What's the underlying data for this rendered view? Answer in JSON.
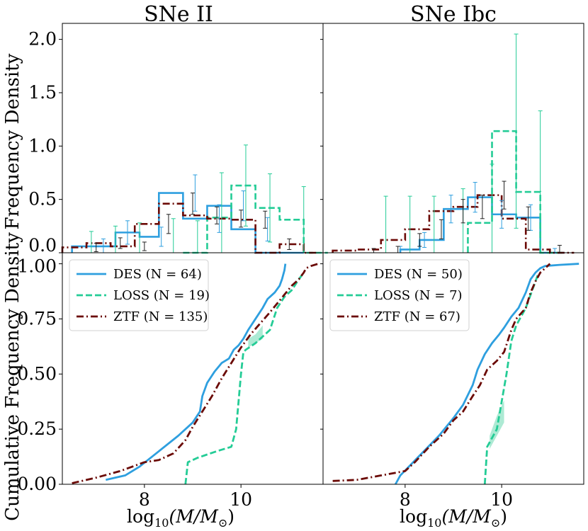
{
  "colors": {
    "des": "#2e9fdf",
    "loss": "#24cc96",
    "ztf": "#6b0a06",
    "loss_band": "#9fe6cc"
  },
  "figure": {
    "ylabel_top": "Frequency Density",
    "ylabel_bottom": "Cumulative Frequency Density",
    "xlabel_main": "log",
    "xlabel_sub": "10",
    "xlabel_rest": "(M/M",
    "xlabel_sun": "⊙",
    "xlabel_close": ")"
  },
  "chart_data": [
    {
      "panel": "hist-sne-ii",
      "type": "bar",
      "title": "SNe II",
      "xlim": [
        6.3,
        11.7
      ],
      "ylim": [
        0,
        2.15
      ],
      "yticks": [
        "0.0",
        "0.5",
        "1.0",
        "1.5",
        "2.0"
      ],
      "ytick_values": [
        0,
        0.5,
        1.0,
        1.5,
        2.0
      ],
      "series": [
        {
          "name": "DES",
          "style": "solid",
          "edges": [
            6.5,
            6.9,
            7.4,
            7.9,
            8.3,
            8.8,
            9.3,
            9.8,
            10.3,
            10.8,
            11.3
          ],
          "values": [
            0.06,
            0.06,
            0.19,
            0.15,
            0.56,
            0.32,
            0.44,
            0.22,
            0.0,
            0.0
          ],
          "errors": [
            [
              7.15,
              0.06,
              0.07
            ],
            [
              7.65,
              0.19,
              0.11
            ],
            [
              8.35,
              0.15,
              0.09
            ],
            [
              9.05,
              0.56,
              0.17
            ],
            [
              9.55,
              0.32,
              0.13
            ],
            [
              10.05,
              0.44,
              0.14
            ],
            [
              10.55,
              0.22,
              0.11
            ]
          ]
        },
        {
          "name": "LOSS",
          "style": "dashed",
          "edges": [
            8.8,
            9.3,
            9.8,
            10.3,
            10.8,
            11.3,
            11.8
          ],
          "values": [
            0.0,
            0.33,
            0.63,
            0.42,
            0.31,
            0.0
          ],
          "errors": [
            [
              6.9,
              0.0,
              0.2
            ],
            [
              7.4,
              0.0,
              0.25
            ],
            [
              7.9,
              0.0,
              0.28
            ],
            [
              8.6,
              0.0,
              0.32
            ],
            [
              9.1,
              0.0,
              0.3
            ],
            [
              9.6,
              0.33,
              0.42
            ],
            [
              10.1,
              0.63,
              0.38
            ],
            [
              10.6,
              0.42,
              0.32
            ],
            [
              11.3,
              0.31,
              0.31
            ]
          ]
        },
        {
          "name": "ZTF",
          "style": "dashdot",
          "edges": [
            6.3,
            6.8,
            7.3,
            7.8,
            8.3,
            8.8,
            9.3,
            9.8,
            10.3,
            10.8,
            11.3,
            11.6
          ],
          "values": [
            0.05,
            0.09,
            0.06,
            0.27,
            0.46,
            0.35,
            0.32,
            0.31,
            0.0,
            0.08,
            0.0
          ],
          "errors": [
            [
              7.0,
              0.05,
              0.04
            ],
            [
              7.5,
              0.09,
              0.05
            ],
            [
              8.0,
              0.06,
              0.04
            ],
            [
              8.5,
              0.27,
              0.09
            ],
            [
              9.0,
              0.46,
              0.1
            ],
            [
              9.5,
              0.35,
              0.08
            ],
            [
              10.0,
              0.32,
              0.08
            ],
            [
              10.5,
              0.31,
              0.08
            ],
            [
              11.0,
              0.08,
              0.05
            ]
          ]
        }
      ]
    },
    {
      "panel": "hist-sne-ibc",
      "type": "bar",
      "title": "SNe Ibc",
      "xlim": [
        6.3,
        11.7
      ],
      "ylim": [
        0,
        2.15
      ],
      "series": [
        {
          "name": "DES",
          "style": "solid",
          "edges": [
            7.9,
            8.3,
            8.8,
            9.3,
            9.8,
            10.3,
            10.8,
            11.3
          ],
          "values": [
            0.03,
            0.12,
            0.41,
            0.52,
            0.36,
            0.33,
            0.0
          ],
          "errors": [
            [
              7.9,
              0.03,
              0.03
            ],
            [
              8.4,
              0.12,
              0.07
            ],
            [
              8.95,
              0.41,
              0.13
            ],
            [
              9.45,
              0.52,
              0.14
            ],
            [
              10.0,
              0.36,
              0.13
            ],
            [
              10.6,
              0.33,
              0.12
            ],
            [
              11.1,
              0.0,
              0.04
            ]
          ]
        },
        {
          "name": "LOSS",
          "style": "dashed",
          "edges": [
            9.3,
            9.8,
            10.3,
            10.8,
            11.3
          ],
          "values": [
            0.28,
            1.14,
            0.57,
            0.0
          ],
          "errors": [
            [
              7.6,
              0.0,
              0.53
            ],
            [
              8.1,
              0.0,
              0.53
            ],
            [
              8.6,
              0.0,
              0.53
            ],
            [
              9.2,
              0.0,
              0.6
            ],
            [
              9.8,
              0.28,
              0.55
            ],
            [
              10.3,
              1.14,
              0.91
            ],
            [
              10.8,
              0.57,
              0.76
            ]
          ]
        },
        {
          "name": "ZTF",
          "style": "dashdot",
          "edges": [
            6.5,
            7.0,
            7.5,
            8.0,
            8.5,
            9.0,
            9.5,
            10.0,
            10.5,
            11.0,
            11.5
          ],
          "values": [
            0.02,
            0.03,
            0.12,
            0.22,
            0.39,
            0.43,
            0.54,
            0.32,
            0.03,
            0.0
          ],
          "errors": [
            [
              7.35,
              0.02,
              0.02
            ],
            [
              7.85,
              0.03,
              0.03
            ],
            [
              8.3,
              0.12,
              0.06
            ],
            [
              8.75,
              0.22,
              0.09
            ],
            [
              9.2,
              0.39,
              0.11
            ],
            [
              9.6,
              0.43,
              0.11
            ],
            [
              10.05,
              0.54,
              0.13
            ],
            [
              10.55,
              0.32,
              0.11
            ],
            [
              11.2,
              0.03,
              0.04
            ]
          ]
        }
      ]
    },
    {
      "panel": "cdf-sne-ii",
      "type": "line",
      "xlim": [
        6.3,
        11.7
      ],
      "ylim": [
        0,
        1.05
      ],
      "xticks": [
        "8",
        "10"
      ],
      "xtick_values": [
        8,
        10
      ],
      "yticks": [
        "0.00",
        "0.25",
        "0.50",
        "0.75",
        "1.00"
      ],
      "ytick_values": [
        0,
        0.25,
        0.5,
        0.75,
        1.0
      ],
      "legend": [
        {
          "label": "DES (N = 64)"
        },
        {
          "label": "LOSS (N = 19)"
        },
        {
          "label": "ZTF (N = 135)"
        }
      ],
      "series": [
        {
          "name": "DES",
          "style": "solid",
          "x": [
            7.2,
            7.6,
            7.9,
            8.3,
            8.7,
            9.0,
            9.15,
            9.2,
            9.3,
            9.45,
            9.6,
            9.75,
            9.85,
            9.95,
            10.05,
            10.15,
            10.3,
            10.45,
            10.55,
            10.7,
            10.8,
            10.85,
            10.9,
            10.92
          ],
          "y": [
            0.02,
            0.04,
            0.08,
            0.15,
            0.22,
            0.28,
            0.33,
            0.4,
            0.46,
            0.51,
            0.55,
            0.57,
            0.61,
            0.63,
            0.66,
            0.7,
            0.75,
            0.8,
            0.84,
            0.87,
            0.9,
            0.93,
            0.97,
            1.0
          ]
        },
        {
          "name": "LOSS",
          "style": "dashed",
          "x": [
            8.85,
            8.9,
            9.1,
            9.5,
            9.8,
            9.9,
            10.0,
            10.05,
            10.1,
            10.3,
            10.6,
            10.75,
            10.9,
            11.05,
            11.2,
            11.3
          ],
          "y": [
            0.0,
            0.1,
            0.12,
            0.15,
            0.17,
            0.25,
            0.5,
            0.6,
            0.61,
            0.64,
            0.7,
            0.8,
            0.85,
            0.88,
            0.93,
            0.96
          ],
          "band": [
            [
              10.15,
              0.62,
              0.66
            ],
            [
              10.3,
              0.64,
              0.68
            ],
            [
              10.45,
              0.66,
              0.72
            ]
          ]
        },
        {
          "name": "ZTF",
          "style": "dashdot",
          "x": [
            6.5,
            7.0,
            7.5,
            8.0,
            8.3,
            8.6,
            8.85,
            9.0,
            9.2,
            9.4,
            9.6,
            9.8,
            10.0,
            10.2,
            10.4,
            10.6,
            10.75,
            10.9,
            11.05,
            11.2,
            11.3,
            11.35,
            11.45,
            11.6
          ],
          "y": [
            0.005,
            0.03,
            0.06,
            0.1,
            0.11,
            0.14,
            0.2,
            0.26,
            0.33,
            0.4,
            0.48,
            0.55,
            0.62,
            0.68,
            0.73,
            0.78,
            0.82,
            0.86,
            0.9,
            0.93,
            0.96,
            0.98,
            0.99,
            1.0
          ]
        }
      ]
    },
    {
      "panel": "cdf-sne-ibc",
      "type": "line",
      "xlim": [
        6.3,
        11.7
      ],
      "ylim": [
        0,
        1.05
      ],
      "xticks": [
        "8",
        "10"
      ],
      "xtick_values": [
        8,
        10
      ],
      "legend": [
        {
          "label": "DES (N = 50)"
        },
        {
          "label": "LOSS (N = 7)"
        },
        {
          "label": "ZTF (N = 67)"
        }
      ],
      "series": [
        {
          "name": "DES",
          "style": "solid",
          "x": [
            7.8,
            7.9,
            8.3,
            8.7,
            9.0,
            9.2,
            9.4,
            9.5,
            9.65,
            9.8,
            9.95,
            10.05,
            10.2,
            10.35,
            10.5,
            10.6,
            10.7,
            10.8,
            10.9,
            11.2,
            11.6
          ],
          "y": [
            0.0,
            0.04,
            0.13,
            0.22,
            0.3,
            0.36,
            0.45,
            0.52,
            0.59,
            0.64,
            0.68,
            0.71,
            0.76,
            0.8,
            0.87,
            0.93,
            0.96,
            0.98,
            0.99,
            0.995,
            1.0
          ]
        },
        {
          "name": "LOSS",
          "style": "dashed",
          "x": [
            9.65,
            9.7,
            9.9,
            10.1,
            10.2,
            10.3,
            10.5,
            10.65,
            10.75
          ],
          "y": [
            0.0,
            0.17,
            0.25,
            0.5,
            0.65,
            0.72,
            0.8,
            0.89,
            0.95
          ],
          "band": [
            [
              9.75,
              0.16,
              0.22
            ],
            [
              9.9,
              0.22,
              0.31
            ],
            [
              10.05,
              0.28,
              0.38
            ]
          ]
        },
        {
          "name": "ZTF",
          "style": "dashdot",
          "x": [
            6.5,
            7.0,
            7.5,
            8.0,
            8.2,
            8.5,
            8.8,
            9.0,
            9.2,
            9.4,
            9.55,
            9.7,
            9.9,
            10.05,
            10.2,
            10.3,
            10.5,
            10.6,
            10.7,
            10.8,
            10.9,
            11.0
          ],
          "y": [
            0.015,
            0.02,
            0.04,
            0.06,
            0.1,
            0.17,
            0.23,
            0.29,
            0.33,
            0.4,
            0.45,
            0.52,
            0.56,
            0.6,
            0.7,
            0.75,
            0.8,
            0.87,
            0.92,
            0.96,
            0.98,
            1.0
          ]
        }
      ]
    }
  ]
}
